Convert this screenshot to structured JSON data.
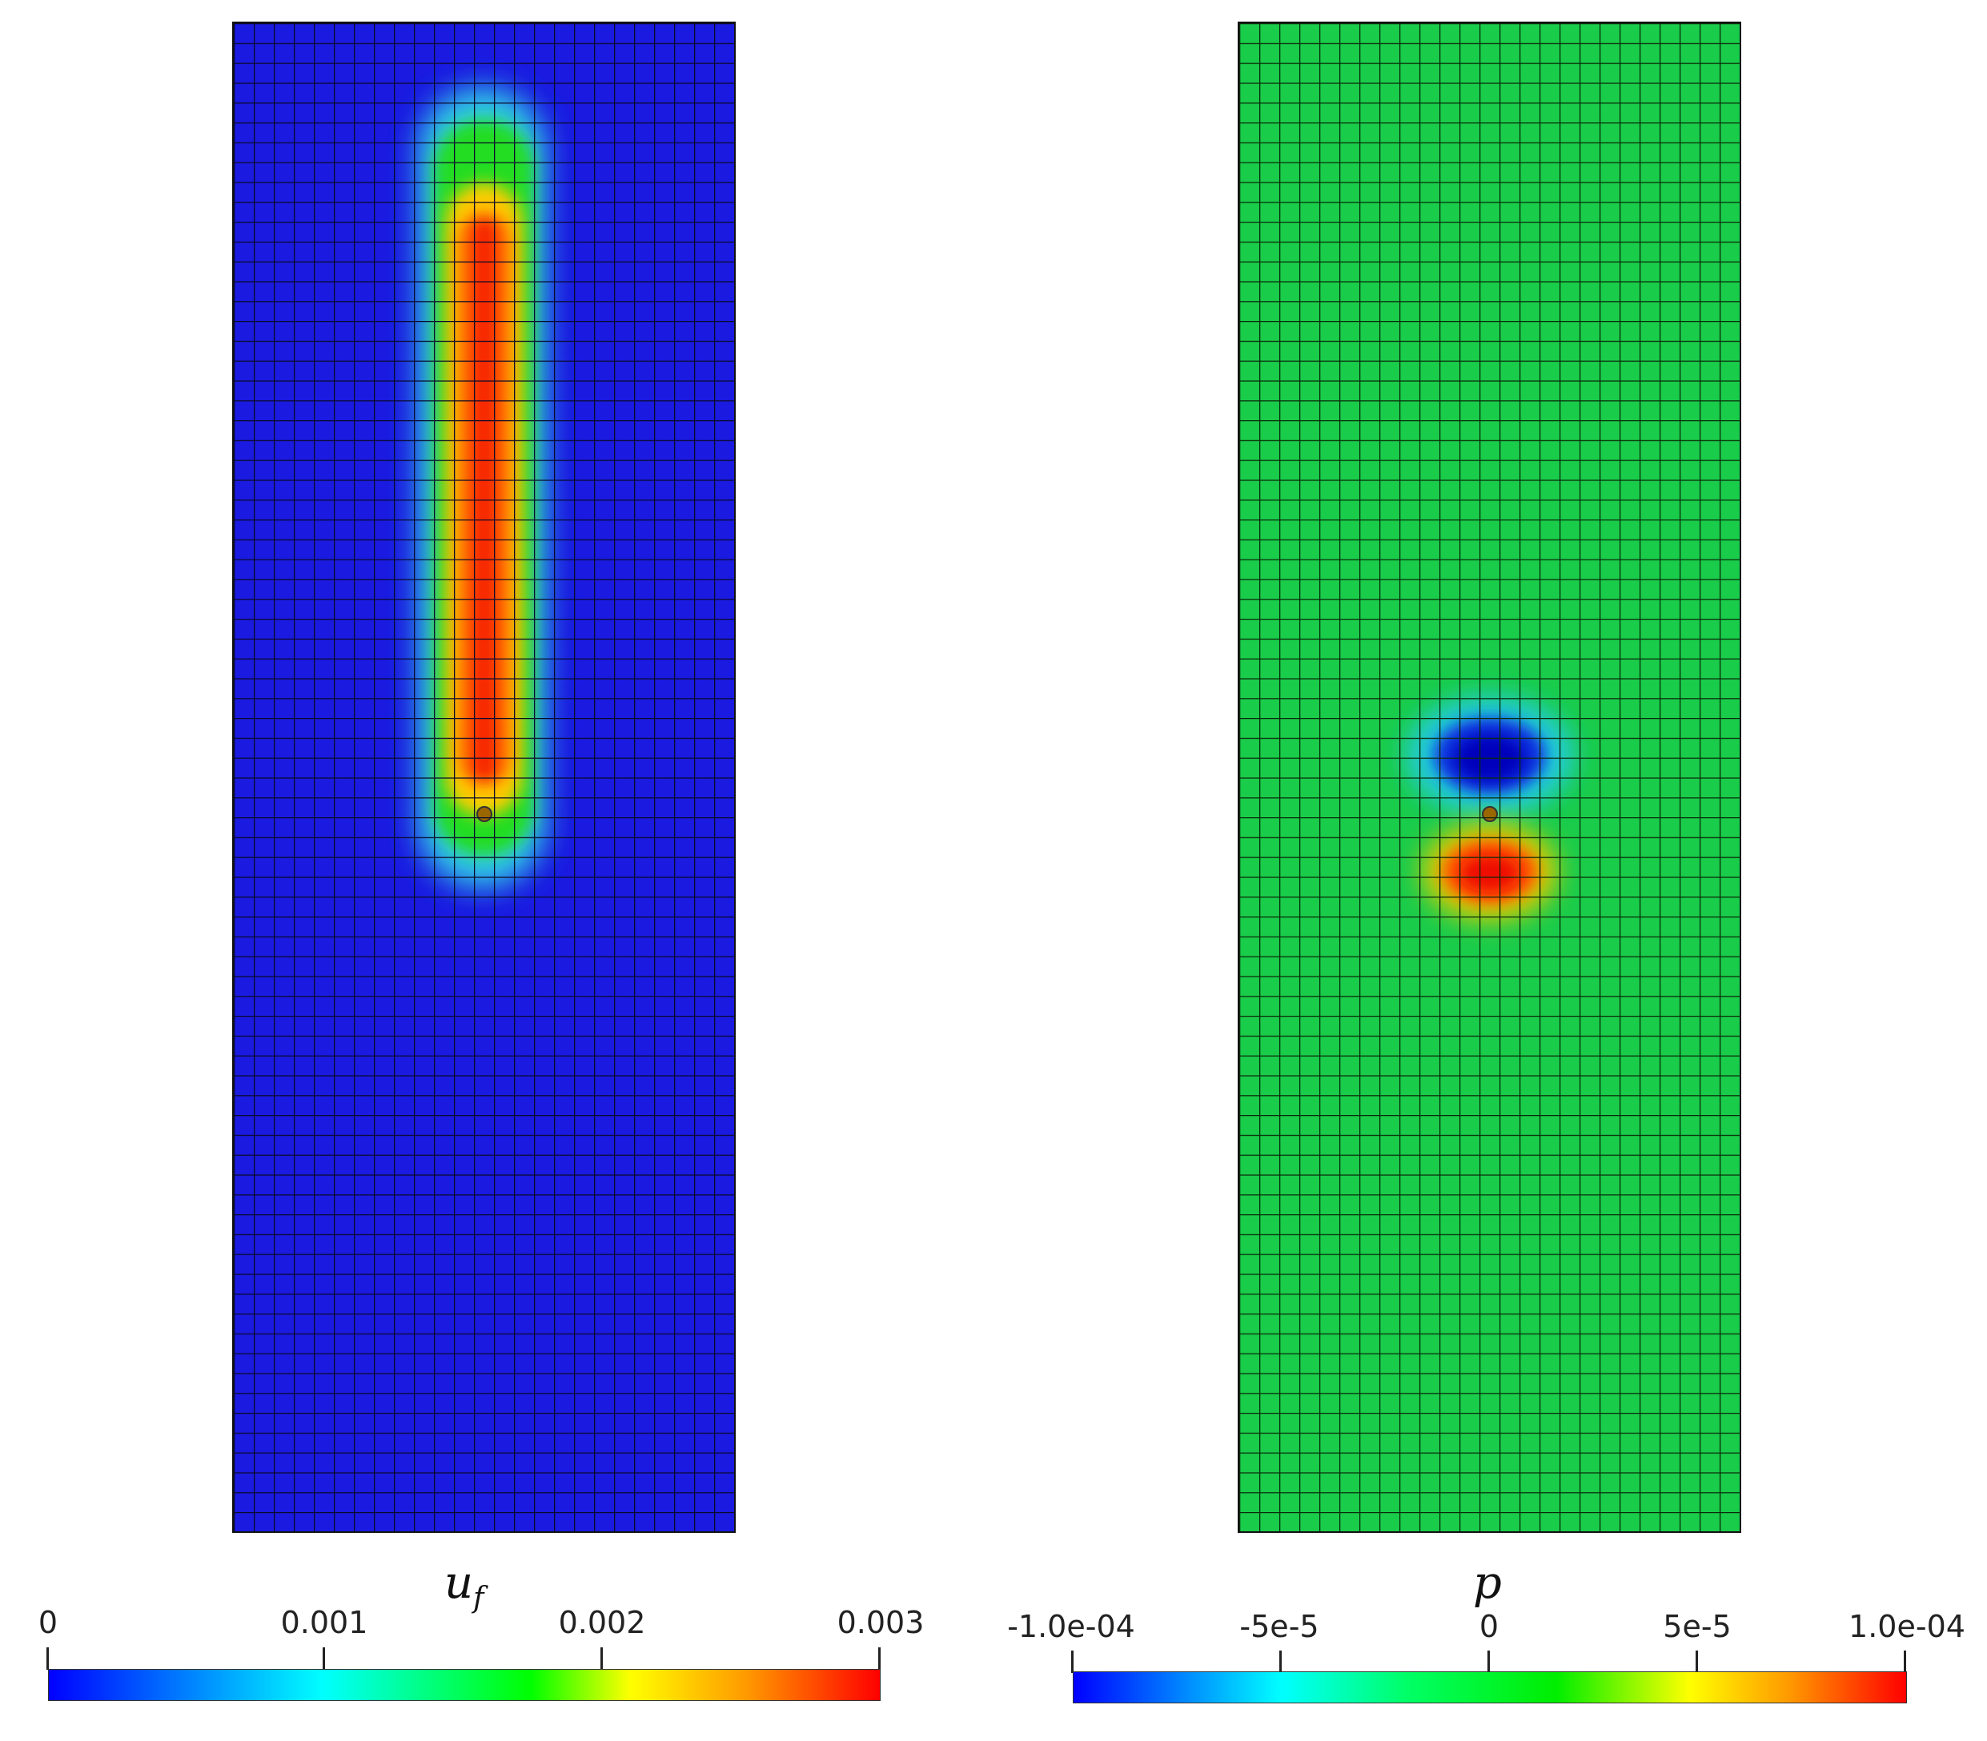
{
  "panels": [
    {
      "field": "u_f",
      "background": "#1a1ae0",
      "grid_cols": 25,
      "grid_rows": 76
    },
    {
      "field": "p",
      "background": "#19cc4a",
      "grid_cols": 25,
      "grid_rows": 76
    }
  ],
  "colorbars": [
    {
      "title_main": "u",
      "title_sub": "f",
      "ticks": [
        "0",
        "0.001",
        "0.002",
        "0.003"
      ],
      "range": [
        0,
        0.003
      ]
    },
    {
      "title_main": "p",
      "ticks": [
        "-1.0e-04",
        "-5e-5",
        "0",
        "5e-5",
        "1.0e-04"
      ],
      "range": [
        -0.0001,
        0.0001
      ]
    }
  ],
  "colormap": [
    "#0000ff",
    "#00ffff",
    "#00ff00",
    "#ffff00",
    "#ff0000"
  ]
}
